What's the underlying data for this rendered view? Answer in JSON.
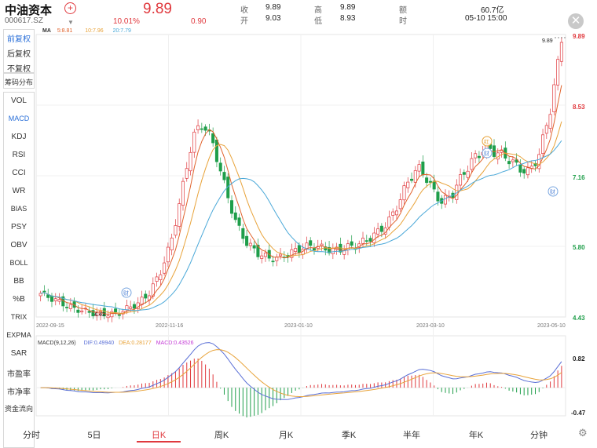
{
  "header": {
    "name": "中油资本",
    "code": "000617.SZ",
    "price": "9.89",
    "change_pct": "10.01%",
    "change_amt": "0.90",
    "stats": {
      "shou_label": "收",
      "shou_value": "9.89",
      "kai_label": "开",
      "kai_value": "9.03",
      "gao_label": "高",
      "gao_value": "9.89",
      "di_label": "低",
      "di_value": "8.93",
      "e_label": "额",
      "e_value": "60.7亿",
      "shi_label": "时",
      "shi_value": "05-10 15:00"
    }
  },
  "sidebar": {
    "fq": [
      "前复权",
      "后复权",
      "不复权"
    ],
    "chip": "筹码分布",
    "indicators": [
      "VOL",
      "MACD",
      "KDJ",
      "RSI",
      "CCI",
      "WR",
      "BIAS",
      "PSY",
      "OBV",
      "BOLL",
      "BB",
      "%B",
      "TRIX",
      "EXPMA",
      "SAR",
      "市盈率",
      "市净率",
      "资金流向"
    ]
  },
  "ma_legend": {
    "label": "MA",
    "ma5": "5:8.81",
    "ma10": "10:7.96",
    "ma20": "20:7.79"
  },
  "price_axis": [
    "9.89",
    "8.53",
    "7.16",
    "5.80",
    "4.43"
  ],
  "date_axis": [
    "2022-09-15",
    "2022-11-16",
    "2023-01-10",
    "2023-03-10",
    "2023-05-10"
  ],
  "annotations": {
    "high": "9.89",
    "low": "4.43",
    "marker": "财",
    "marker2": "红"
  },
  "macd": {
    "title": "MACD(9,12,26)",
    "dif": "DIF:0.49940",
    "dea": "DEA:0.28177",
    "macd": "MACD:0.43526",
    "axis_top": "0.82",
    "axis_bottom": "-0.47"
  },
  "periods": [
    "分时",
    "5日",
    "日K",
    "周K",
    "月K",
    "季K",
    "半年",
    "年K",
    "分钟"
  ],
  "active_period": "日K",
  "colors": {
    "up": "#e0393e",
    "down": "#1f9e4a",
    "ma5": "#e0622b",
    "ma10": "#e8a33a",
    "ma20": "#4aa8d8",
    "dif": "#5a6fd6",
    "dea": "#e8a33a",
    "macd": "#c43bd6"
  },
  "chart_data": {
    "type": "candlestick",
    "x": [
      "2022-09-15",
      "2022-11-16",
      "2023-01-10",
      "2023-03-10",
      "2023-05-10"
    ],
    "price_range": [
      4.43,
      9.89
    ],
    "close_path": [
      4.9,
      4.8,
      4.7,
      4.6,
      4.55,
      4.5,
      4.48,
      4.5,
      4.6,
      4.7,
      4.9,
      5.3,
      5.9,
      6.9,
      8.0,
      8.3,
      7.8,
      7.0,
      6.3,
      5.9,
      5.7,
      5.6,
      5.6,
      5.7,
      5.8,
      5.85,
      5.8,
      5.75,
      5.8,
      5.85,
      5.95,
      6.1,
      6.3,
      6.7,
      7.2,
      7.4,
      7.0,
      6.7,
      6.9,
      7.3,
      7.6,
      7.8,
      7.7,
      7.6,
      7.4,
      7.3,
      7.7,
      8.6,
      9.89
    ],
    "macd_range": [
      -0.47,
      0.82
    ]
  }
}
